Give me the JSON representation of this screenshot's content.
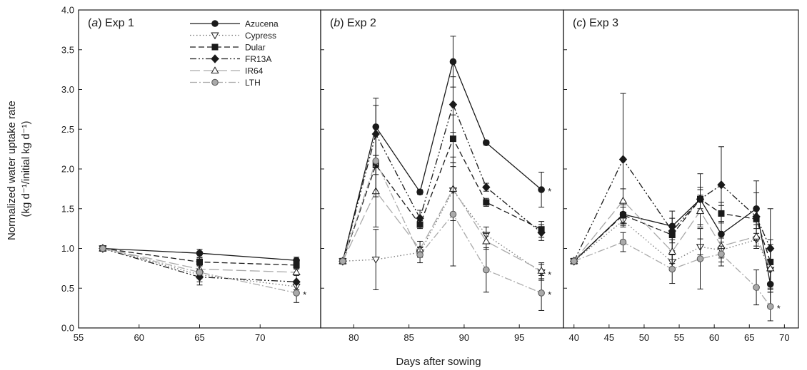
{
  "chart_data": {
    "type": "line",
    "ylabel_line1": "Normalized water uptake rate",
    "ylabel_line2": "(kg d⁻¹/initial kg d⁻¹)",
    "xlabel": "Days after sowing",
    "ylim": [
      0.0,
      4.0
    ],
    "yticks": [
      "0.0",
      "0.5",
      "1.0",
      "1.5",
      "2.0",
      "2.5",
      "3.0",
      "3.5",
      "4.0"
    ],
    "legend": {
      "placement": "top, panel (a)",
      "entries": [
        "Azucena",
        "Cypress",
        "Dular",
        "FR13A",
        "IR64",
        "LTH"
      ]
    },
    "series_styles": [
      {
        "name": "Azucena",
        "color": "#1a1a1a",
        "dash": "none",
        "marker": "circle",
        "fill": "#1a1a1a"
      },
      {
        "name": "Cypress",
        "color": "#777777",
        "dash": "1.5,3",
        "marker": "triangle-down",
        "fill": "#ffffff"
      },
      {
        "name": "Dular",
        "color": "#1a1a1a",
        "dash": "8,4",
        "marker": "square",
        "fill": "#1a1a1a"
      },
      {
        "name": "FR13A",
        "color": "#1a1a1a",
        "dash": "9,3,2,3,2,3",
        "marker": "diamond",
        "fill": "#1a1a1a"
      },
      {
        "name": "IR64",
        "color": "#aaaaaa",
        "dash": "14,5",
        "marker": "triangle-up",
        "fill": "#ffffff"
      },
      {
        "name": "LTH",
        "color": "#aaaaaa",
        "dash": "10,3,2,3",
        "marker": "circle",
        "fill": "#aaaaaa"
      }
    ],
    "panels": [
      {
        "title": "(a) Exp 1",
        "title_italic": "a",
        "title_rest": " Exp 1",
        "xlim": [
          55,
          75
        ],
        "xticks": [
          55,
          60,
          65,
          70
        ],
        "stars": [
          {
            "x": 73,
            "y": 0.44
          }
        ],
        "series": [
          {
            "name": "Azucena",
            "x": [
              57,
              65,
              73
            ],
            "y": [
              1.0,
              0.94,
              0.85
            ],
            "err": [
              0,
              0.05,
              0.04
            ]
          },
          {
            "name": "Cypress",
            "x": [
              57,
              65,
              73
            ],
            "y": [
              1.0,
              0.67,
              0.52
            ],
            "err": [
              0,
              0.05,
              0.04
            ]
          },
          {
            "name": "Dular",
            "x": [
              57,
              65,
              73
            ],
            "y": [
              1.0,
              0.83,
              0.79
            ],
            "err": [
              0,
              0.05,
              0.04
            ]
          },
          {
            "name": "FR13A",
            "x": [
              57,
              65,
              73
            ],
            "y": [
              1.0,
              0.64,
              0.58
            ],
            "err": [
              0,
              0.1,
              0.1
            ]
          },
          {
            "name": "IR64",
            "x": [
              57,
              65,
              73
            ],
            "y": [
              1.0,
              0.74,
              0.7
            ],
            "err": [
              0,
              0.05,
              0.04
            ]
          },
          {
            "name": "LTH",
            "x": [
              57,
              65,
              73
            ],
            "y": [
              1.0,
              0.7,
              0.44
            ],
            "err": [
              0,
              0.12,
              0.12
            ]
          }
        ]
      },
      {
        "title": "(b) Exp 2",
        "title_italic": "b",
        "title_rest": " Exp 2",
        "xlim": [
          77,
          99
        ],
        "xticks": [
          80,
          85,
          90,
          95
        ],
        "stars": [
          {
            "x": 97,
            "y": 1.74
          },
          {
            "x": 97,
            "y": 0.69
          },
          {
            "x": 97,
            "y": 0.44
          }
        ],
        "series": [
          {
            "name": "Azucena",
            "x": [
              79,
              82,
              86,
              89,
              92,
              97
            ],
            "y": [
              0.84,
              2.53,
              1.71,
              3.35,
              2.33,
              1.74
            ],
            "err": [
              0,
              0.36,
              0.03,
              0.32,
              0.03,
              0.22
            ]
          },
          {
            "name": "Cypress",
            "x": [
              79,
              82,
              86,
              89,
              92,
              97
            ],
            "y": [
              0.84,
              0.86,
              0.95,
              1.73,
              1.17,
              0.7
            ],
            "err": [
              0,
              0.38,
              0.06,
              0.3,
              0.1,
              0.1
            ]
          },
          {
            "name": "Dular",
            "x": [
              79,
              82,
              86,
              89,
              92,
              97
            ],
            "y": [
              0.84,
              2.05,
              1.3,
              2.38,
              1.58,
              1.24
            ],
            "err": [
              0,
              0.12,
              0.05,
              0.3,
              0.05,
              0.1
            ]
          },
          {
            "name": "FR13A",
            "x": [
              79,
              82,
              86,
              89,
              92,
              97
            ],
            "y": [
              0.84,
              2.44,
              1.38,
              2.81,
              1.77,
              1.2
            ],
            "err": [
              0,
              0.36,
              0.1,
              0.35,
              0.05,
              0.1
            ]
          },
          {
            "name": "IR64",
            "x": [
              79,
              82,
              86,
              89,
              92,
              97
            ],
            "y": [
              0.84,
              1.72,
              0.99,
              1.75,
              1.09,
              0.72
            ],
            "err": [
              0,
              0.45,
              0.1,
              0.4,
              0.1,
              0.1
            ]
          },
          {
            "name": "LTH",
            "x": [
              79,
              82,
              86,
              89,
              92,
              97
            ],
            "y": [
              0.84,
              2.1,
              0.92,
              1.43,
              0.73,
              0.44
            ],
            "err": [
              0,
              0.45,
              0.1,
              0.65,
              0.28,
              0.22
            ]
          }
        ]
      },
      {
        "title": "(c) Exp 3",
        "title_italic": "c",
        "title_rest": " Exp 3",
        "xlim": [
          38.5,
          72
        ],
        "xticks": [
          40,
          45,
          50,
          55,
          60,
          65,
          70
        ],
        "stars": [
          {
            "x": 68,
            "y": 0.27
          }
        ],
        "series": [
          {
            "name": "Azucena",
            "x": [
              40,
              47,
              54,
              58,
              61,
              66,
              68
            ],
            "y": [
              0.84,
              1.43,
              1.28,
              1.62,
              1.18,
              1.5,
              0.55
            ],
            "err": [
              0,
              0.12,
              0.1,
              0.15,
              0.4,
              0.35,
              0.3
            ]
          },
          {
            "name": "Cypress",
            "x": [
              40,
              47,
              54,
              58,
              61,
              66,
              68
            ],
            "y": [
              0.84,
              1.35,
              0.83,
              1.02,
              0.98,
              1.11,
              0.73
            ],
            "err": [
              0,
              0.08,
              0.1,
              0.1,
              0.1,
              0.08,
              0.25
            ]
          },
          {
            "name": "Dular",
            "x": [
              40,
              47,
              54,
              58,
              61,
              66,
              68
            ],
            "y": [
              0.84,
              1.42,
              1.17,
              1.62,
              1.44,
              1.37,
              0.83
            ],
            "err": [
              0,
              0.1,
              0.1,
              0.12,
              0.1,
              0.12,
              0.28
            ]
          },
          {
            "name": "FR13A",
            "x": [
              40,
              47,
              54,
              58,
              61,
              66,
              68
            ],
            "y": [
              0.84,
              2.12,
              1.22,
              1.62,
              1.8,
              1.4,
              1.0
            ],
            "err": [
              0,
              0.83,
              0.25,
              0.32,
              0.48,
              0.3,
              0.5
            ]
          },
          {
            "name": "IR64",
            "x": [
              40,
              47,
              54,
              58,
              61,
              66,
              68
            ],
            "y": [
              0.84,
              1.6,
              0.96,
              1.47,
              1.03,
              1.15,
              0.75
            ],
            "err": [
              0,
              0.15,
              0.15,
              0.2,
              0.1,
              0.15,
              0.3
            ]
          },
          {
            "name": "LTH",
            "x": [
              40,
              47,
              54,
              58,
              61,
              66,
              68
            ],
            "y": [
              0.84,
              1.08,
              0.74,
              0.87,
              0.93,
              0.51,
              0.27
            ],
            "err": [
              0,
              0.12,
              0.18,
              0.38,
              0.1,
              0.22,
              0.18
            ]
          }
        ]
      }
    ]
  }
}
